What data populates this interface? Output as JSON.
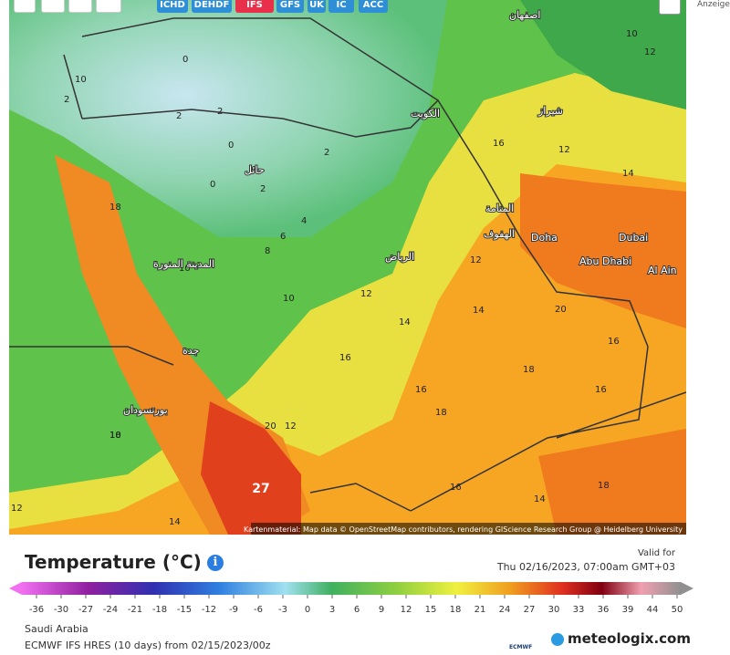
{
  "toolbar": {
    "models": [
      "ICHD",
      "DEHDF",
      "IFS",
      "GFS",
      "UK",
      "IC",
      "ACC"
    ]
  },
  "side": {
    "ad": "Anzeige"
  },
  "map": {
    "labels": [
      "2",
      "0",
      "2",
      "2",
      "0",
      "2",
      "2",
      "0",
      "4",
      "6",
      "8",
      "10",
      "10",
      "12",
      "14",
      "14",
      "16",
      "16",
      "16",
      "18",
      "18",
      "16",
      "16",
      "20",
      "12",
      "14",
      "10",
      "12",
      "12",
      "18",
      "20",
      "12",
      "18",
      "16",
      "14",
      "18",
      "10",
      "14",
      "12",
      "10"
    ],
    "cities": [
      "Doha",
      "Dubai",
      "Abu Dhabi",
      "Al Ain",
      "الرياض",
      "الكويت",
      "جدة",
      "المدينة المنورة",
      "حائل",
      "الهفوف",
      "المنامة",
      "اصفهان",
      "شيراز",
      "بورتسودان"
    ],
    "max_label": "27",
    "attribution": "Kartenmaterial: Map data © OpenStreetMap contributors, rendering GIScience Research Group @ Heidelberg University"
  },
  "legend": {
    "title": "Temperature (°C)",
    "valid_for": "Valid for",
    "valid_time": "Thu 02/16/2023, 07:00am GMT+03",
    "ticks": [
      "-36",
      "-30",
      "-27",
      "-24",
      "-21",
      "-18",
      "-15",
      "-12",
      "-9",
      "-6",
      "-3",
      "0",
      "3",
      "6",
      "9",
      "12",
      "15",
      "18",
      "21",
      "24",
      "27",
      "30",
      "33",
      "36",
      "39",
      "44",
      "50"
    ]
  },
  "footer": {
    "region": "Saudi Arabia",
    "model_run": "ECMWF IFS HRES (10 days) from 02/15/2023/00z",
    "brand": "meteologix.com",
    "ecmwf": "ECMWF"
  }
}
